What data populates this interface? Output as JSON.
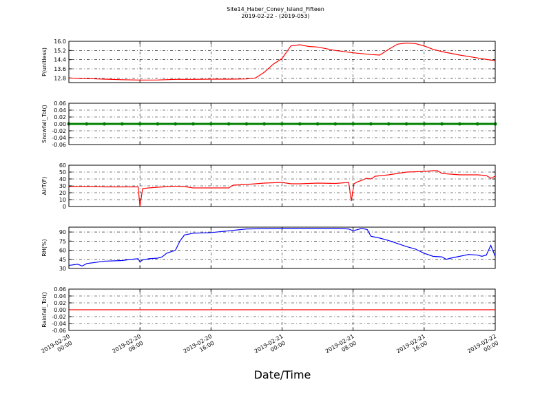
{
  "chart_data": [
    {
      "type": "line",
      "title": "Site14_Haber_Coney_Island_Fifteen",
      "subtitle": "2019-02-22 - (2019-053)",
      "ylabel": "P(unitless)",
      "ylim": [
        12.4,
        16.0
      ],
      "yticks": [
        12.8,
        13.6,
        14.4,
        15.2,
        {
          "value": 16,
          "label": "16.0"
        }
      ],
      "xlim": [
        "2019-02-20T00:00",
        "2019-02-22T00:00"
      ],
      "grid": true,
      "x": [
        "2019-02-20T00:00",
        "2019-02-20T02:00",
        "2019-02-20T04:00",
        "2019-02-20T06:00",
        "2019-02-20T08:00",
        "2019-02-20T10:00",
        "2019-02-20T12:00",
        "2019-02-20T14:00",
        "2019-02-20T16:00",
        "2019-02-20T18:00",
        "2019-02-20T20:00",
        "2019-02-20T21:00",
        "2019-02-20T22:00",
        "2019-02-20T23:00",
        "2019-02-21T00:00",
        "2019-02-21T01:00",
        "2019-02-21T02:00",
        "2019-02-21T03:00",
        "2019-02-21T04:00",
        "2019-02-21T06:00",
        "2019-02-21T08:00",
        "2019-02-21T10:00",
        "2019-02-21T11:00",
        "2019-02-21T12:00",
        "2019-02-21T13:00",
        "2019-02-21T14:00",
        "2019-02-21T15:00",
        "2019-02-21T16:00",
        "2019-02-21T17:00",
        "2019-02-21T18:00",
        "2019-02-21T20:00",
        "2019-02-21T22:00",
        "2019-02-22T00:00"
      ],
      "series": [
        {
          "color": "#ff0000",
          "values": [
            12.8,
            12.75,
            12.7,
            12.65,
            12.62,
            12.63,
            12.68,
            12.68,
            12.7,
            12.7,
            12.72,
            12.8,
            13.3,
            14.0,
            14.5,
            15.6,
            15.7,
            15.55,
            15.5,
            15.2,
            15.0,
            14.85,
            14.8,
            15.3,
            15.75,
            15.85,
            15.8,
            15.6,
            15.3,
            15.1,
            14.8,
            14.55,
            14.3
          ]
        }
      ]
    },
    {
      "type": "line",
      "ylabel": "Snowfall_Tot()",
      "markers": true,
      "ylim": [
        -0.06,
        0.06
      ],
      "yticks": [
        -0.06,
        -0.04,
        -0.02,
        {
          "value": 0,
          "label": "0.00"
        },
        0.02,
        0.04,
        0.06
      ],
      "xlim": [
        "2019-02-20T00:00",
        "2019-02-22T00:00"
      ],
      "grid": true,
      "x": [
        "2019-02-20T00:00",
        "2019-02-20T02:00",
        "2019-02-20T04:00",
        "2019-02-20T06:00",
        "2019-02-20T08:00",
        "2019-02-20T10:00",
        "2019-02-20T12:00",
        "2019-02-20T14:00",
        "2019-02-20T16:00",
        "2019-02-20T18:00",
        "2019-02-20T20:00",
        "2019-02-20T22:00",
        "2019-02-21T00:00",
        "2019-02-21T02:00",
        "2019-02-21T04:00",
        "2019-02-21T06:00",
        "2019-02-21T08:00",
        "2019-02-21T10:00",
        "2019-02-21T12:00",
        "2019-02-21T14:00",
        "2019-02-21T16:00",
        "2019-02-21T18:00",
        "2019-02-21T20:00",
        "2019-02-21T22:00",
        "2019-02-22T00:00"
      ],
      "series": [
        {
          "color": "#008000",
          "values": [
            0,
            0,
            0,
            0,
            0,
            0,
            0,
            0,
            0,
            0,
            0,
            0,
            0,
            0,
            0,
            0,
            0,
            0,
            0,
            0,
            0,
            0,
            0,
            0,
            0
          ]
        }
      ]
    },
    {
      "type": "line",
      "ylabel": "AirT(F)",
      "ylim": [
        0,
        60
      ],
      "yticks": [
        0,
        10,
        20,
        30,
        40,
        50,
        60
      ],
      "xlim": [
        "2019-02-20T00:00",
        "2019-02-22T00:00"
      ],
      "grid": true,
      "x": [
        "2019-02-20T00:00",
        "2019-02-20T02:00",
        "2019-02-20T04:00",
        "2019-02-20T06:00",
        "2019-02-20T07:48",
        "2019-02-20T08:00",
        "2019-02-20T08:18",
        "2019-02-20T09:00",
        "2019-02-20T10:00",
        "2019-02-20T12:00",
        "2019-02-20T13:00",
        "2019-02-20T14:00",
        "2019-02-20T16:00",
        "2019-02-20T18:00",
        "2019-02-20T18:30",
        "2019-02-20T20:00",
        "2019-02-20T22:00",
        "2019-02-21T00:00",
        "2019-02-21T01:00",
        "2019-02-21T02:00",
        "2019-02-21T04:00",
        "2019-02-21T06:00",
        "2019-02-21T07:30",
        "2019-02-21T07:48",
        "2019-02-21T08:06",
        "2019-02-21T08:30",
        "2019-02-21T09:00",
        "2019-02-21T09:30",
        "2019-02-21T10:00",
        "2019-02-21T10:30",
        "2019-02-21T12:00",
        "2019-02-21T14:00",
        "2019-02-21T16:00",
        "2019-02-21T17:00",
        "2019-02-21T17:30",
        "2019-02-21T18:00",
        "2019-02-21T19:00",
        "2019-02-21T20:00",
        "2019-02-21T22:00",
        "2019-02-21T23:00",
        "2019-02-21T23:30",
        "2019-02-22T00:00"
      ],
      "series": [
        {
          "color": "#ff0000",
          "values": [
            29,
            29,
            28.5,
            28.5,
            28.5,
            0,
            26,
            27,
            28,
            29.5,
            29,
            27,
            27,
            27,
            31,
            32,
            34,
            35,
            33,
            33,
            34,
            33.5,
            35,
            8,
            33,
            36,
            38,
            41,
            40,
            44,
            46,
            50,
            51,
            52,
            52,
            48,
            47,
            46,
            46,
            45,
            41,
            44
          ]
        }
      ]
    },
    {
      "type": "line",
      "ylabel": "RH(%)",
      "ylim": [
        30,
        98
      ],
      "yticks": [
        30,
        45,
        60,
        75,
        90
      ],
      "xlim": [
        "2019-02-20T00:00",
        "2019-02-22T00:00"
      ],
      "grid": true,
      "x": [
        "2019-02-20T00:00",
        "2019-02-20T01:00",
        "2019-02-20T01:30",
        "2019-02-20T02:00",
        "2019-02-20T03:00",
        "2019-02-20T04:00",
        "2019-02-20T06:00",
        "2019-02-20T07:00",
        "2019-02-20T07:48",
        "2019-02-20T08:00",
        "2019-02-20T08:18",
        "2019-02-20T09:00",
        "2019-02-20T10:00",
        "2019-02-20T10:30",
        "2019-02-20T11:00",
        "2019-02-20T12:00",
        "2019-02-20T12:30",
        "2019-02-20T13:00",
        "2019-02-20T14:00",
        "2019-02-20T16:00",
        "2019-02-20T18:00",
        "2019-02-20T20:00",
        "2019-02-21T00:00",
        "2019-02-21T04:00",
        "2019-02-21T06:00",
        "2019-02-21T07:30",
        "2019-02-21T08:00",
        "2019-02-21T09:00",
        "2019-02-21T09:36",
        "2019-02-21T10:00",
        "2019-02-21T11:00",
        "2019-02-21T12:00",
        "2019-02-21T13:00",
        "2019-02-21T14:00",
        "2019-02-21T15:00",
        "2019-02-21T16:00",
        "2019-02-21T17:00",
        "2019-02-21T18:00",
        "2019-02-21T18:30",
        "2019-02-21T19:00",
        "2019-02-21T20:00",
        "2019-02-21T21:00",
        "2019-02-21T22:00",
        "2019-02-21T22:30",
        "2019-02-21T23:00",
        "2019-02-21T23:30",
        "2019-02-22T00:00"
      ],
      "series": [
        {
          "color": "#0000ff",
          "values": [
            35,
            37,
            34,
            38,
            40,
            42,
            43,
            45,
            46,
            41,
            44,
            46,
            47,
            49,
            55,
            60,
            75,
            85,
            88,
            89,
            92,
            95,
            96,
            96,
            96,
            95,
            92,
            96,
            94,
            83,
            80,
            76,
            71,
            66,
            62,
            55,
            50,
            49,
            45,
            47,
            50,
            53,
            52,
            50,
            52,
            68,
            50
          ]
        }
      ]
    },
    {
      "type": "line",
      "ylabel": "Rainfall_Tot()",
      "xlabel": "Date/Time",
      "ylim": [
        -0.06,
        0.06
      ],
      "yticks": [
        -0.06,
        -0.04,
        -0.02,
        {
          "value": 0,
          "label": "0.00"
        },
        0.02,
        0.04,
        0.06
      ],
      "xlim": [
        "2019-02-20T00:00",
        "2019-02-22T00:00"
      ],
      "grid": true,
      "xticks": [
        {
          "value": "2019-02-20T00:00",
          "label": "2019-02-20 00:00"
        },
        {
          "value": "2019-02-20T08:00",
          "label": "2019-02-20 08:00"
        },
        {
          "value": "2019-02-20T16:00",
          "label": "2019-02-20 16:00"
        },
        {
          "value": "2019-02-21T00:00",
          "label": "2019-02-21 00:00"
        },
        {
          "value": "2019-02-21T08:00",
          "label": "2019-02-21 08:00"
        },
        {
          "value": "2019-02-21T16:00",
          "label": "2019-02-21 16:00"
        },
        {
          "value": "2019-02-22T00:00",
          "label": "2019-02-22 00:00"
        }
      ],
      "x": [
        "2019-02-20T00:00",
        "2019-02-22T00:00"
      ],
      "series": [
        {
          "color": "#ff0000",
          "values": [
            0,
            0
          ]
        }
      ]
    }
  ]
}
